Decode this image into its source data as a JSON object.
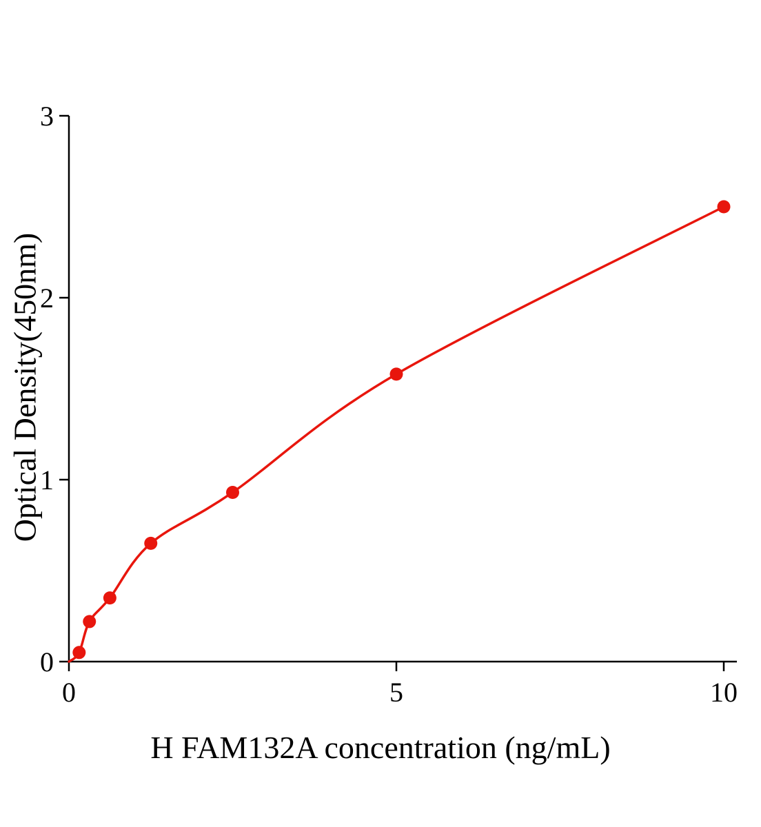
{
  "chart_data": {
    "type": "scatter",
    "title": "",
    "xlabel": "H FAM132A concentration (ng/mL)",
    "ylabel": "Optical Density(450nm)",
    "x": [
      0.156,
      0.313,
      0.625,
      1.25,
      2.5,
      5,
      10
    ],
    "y": [
      0.05,
      0.22,
      0.35,
      0.65,
      0.93,
      1.58,
      2.5
    ],
    "curve_start": [
      0,
      0
    ],
    "xlim": [
      0,
      10.2
    ],
    "ylim": [
      0,
      3
    ],
    "x_ticks": [
      0,
      5,
      10
    ],
    "y_ticks": [
      0,
      1,
      2,
      3
    ],
    "line_color": "#e8160d",
    "marker_color": "#e8160d",
    "axis_color": "#000000",
    "grid": false,
    "legend_position": "none"
  }
}
